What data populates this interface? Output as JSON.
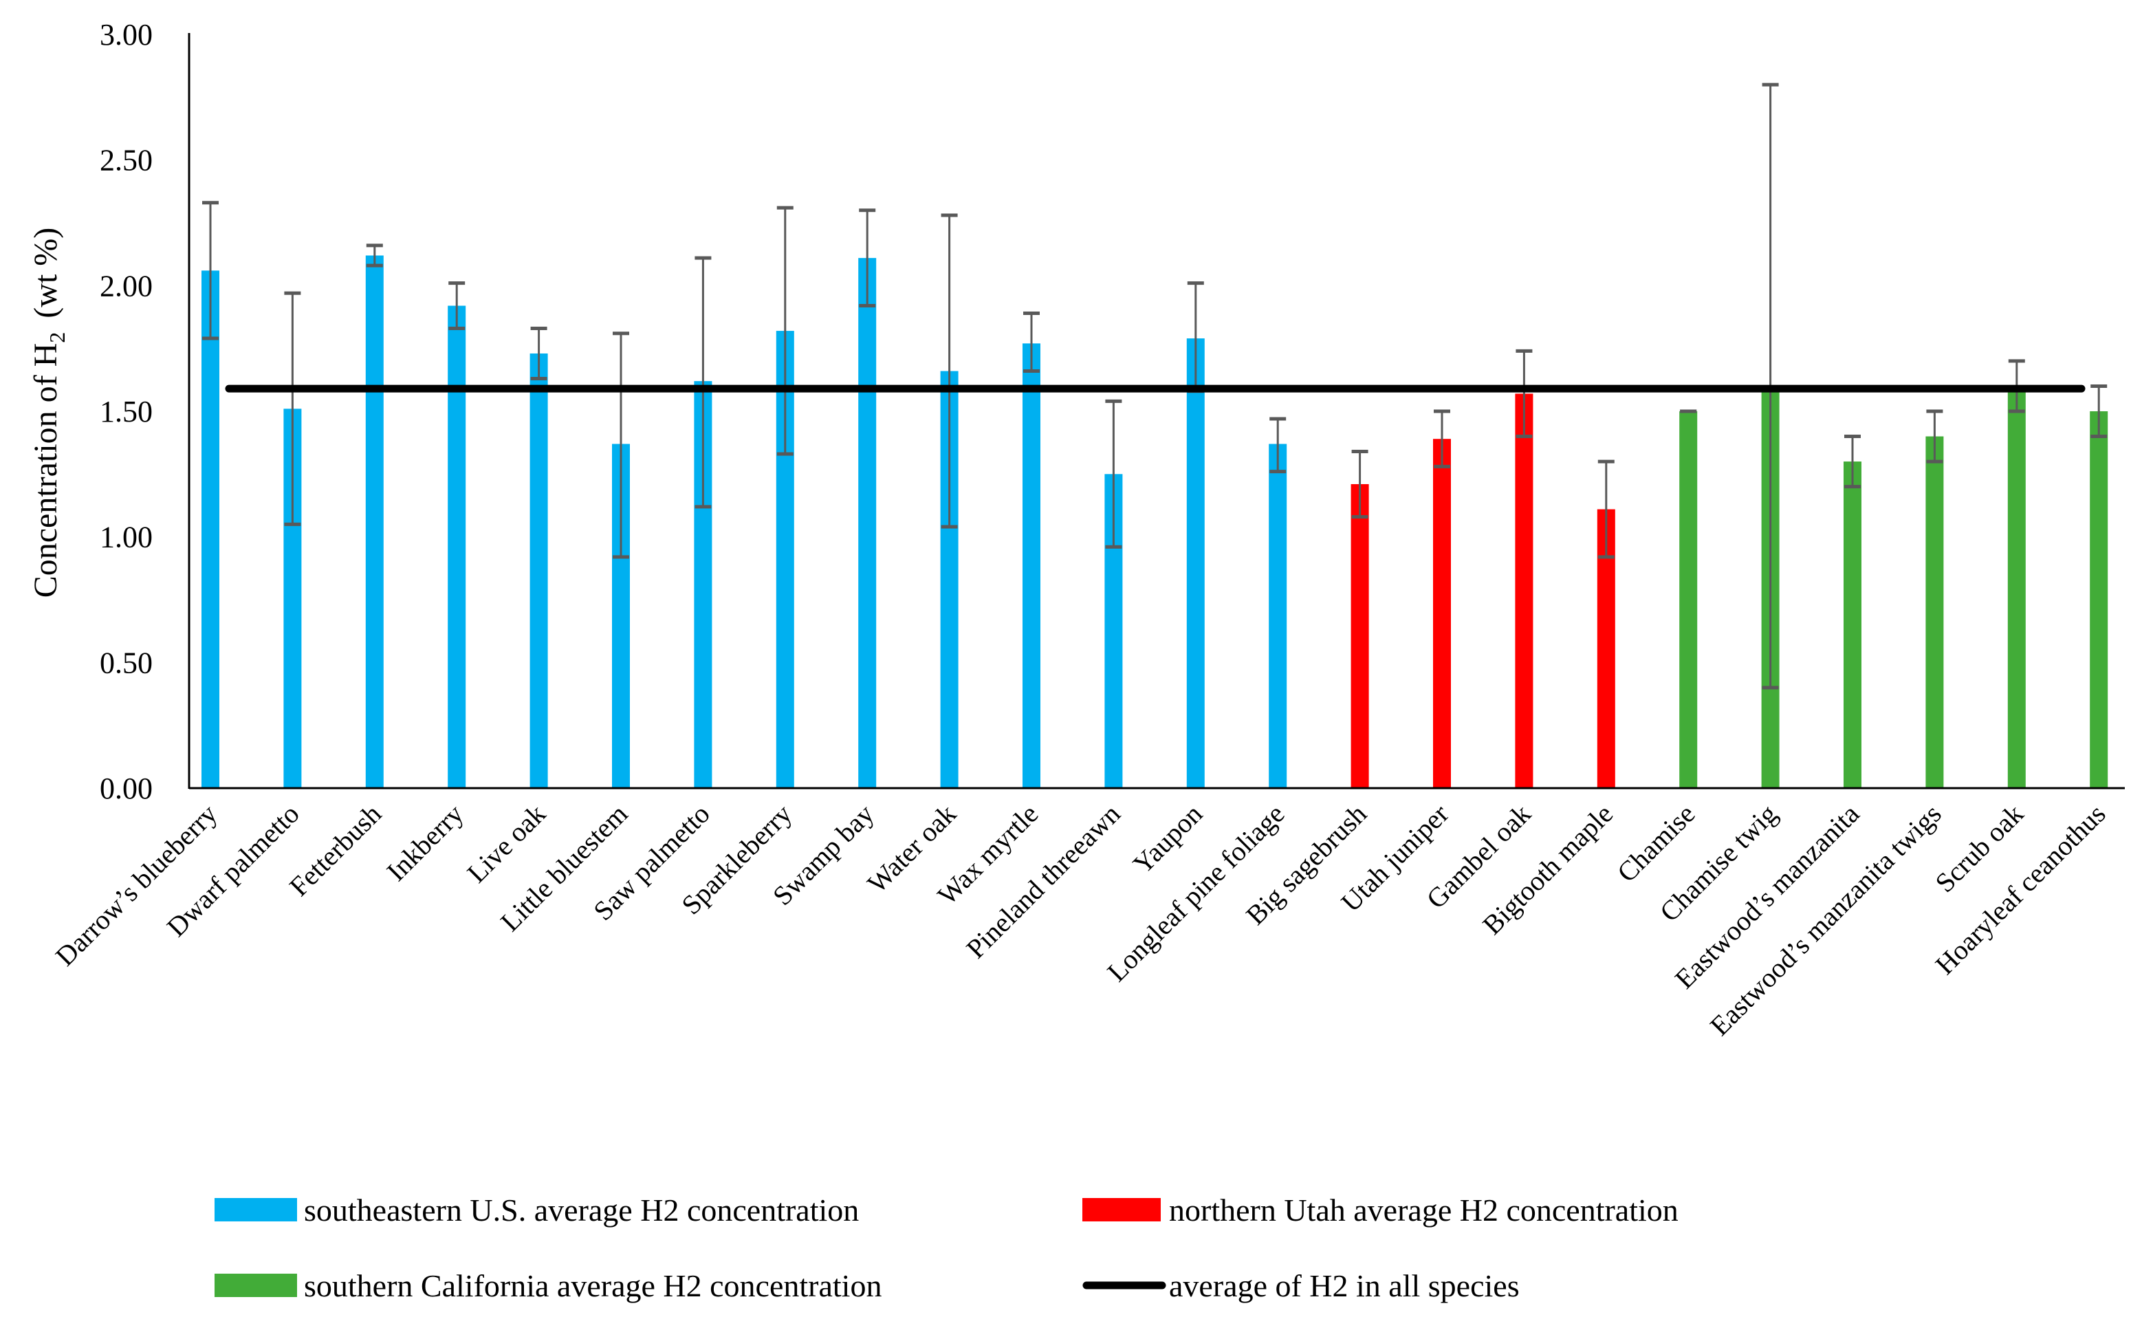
{
  "chart_data": {
    "type": "bar",
    "ylabel": "Concentration of H",
    "ylabel_sub": "2",
    "ylabel_unit": "(wt %)",
    "ylim": [
      0,
      3
    ],
    "yticks": [
      "0.00",
      "0.50",
      "1.00",
      "1.50",
      "2.00",
      "2.50",
      "3.00"
    ],
    "ytick_values": [
      0,
      0.5,
      1,
      1.5,
      2,
      2.5,
      3
    ],
    "grid": false,
    "categories": [
      "Darrow’s blueberry",
      "Dwarf palmetto",
      "Fetterbush",
      "Inkberry",
      "Live oak",
      "Little bluestem",
      "Saw palmetto",
      "Sparkleberry",
      "Swamp bay",
      "Water oak",
      "Wax myrtle",
      "Pineland threeawn",
      "Yaupon",
      "Longleaf pine foliage",
      "Big sagebrush",
      "Utah juniper",
      "Gambel oak",
      "Bigtooth maple",
      "Chamise",
      "Chamise twig",
      "Eastwood’s manzanita",
      "Eastwood’s manzanita twigs",
      "Scrub oak",
      "Hoaryleaf ceanothus"
    ],
    "values": [
      2.06,
      1.51,
      2.12,
      1.92,
      1.73,
      1.37,
      1.62,
      1.82,
      2.11,
      1.66,
      1.77,
      1.25,
      1.79,
      1.37,
      1.21,
      1.39,
      1.57,
      1.11,
      1.5,
      1.6,
      1.3,
      1.4,
      1.6,
      1.5
    ],
    "error_low": [
      1.79,
      1.05,
      2.08,
      1.83,
      1.63,
      0.92,
      1.12,
      1.33,
      1.92,
      1.04,
      1.66,
      0.96,
      1.58,
      1.26,
      1.08,
      1.28,
      1.4,
      0.92,
      1.5,
      0.4,
      1.2,
      1.3,
      1.5,
      1.4
    ],
    "error_high": [
      2.33,
      1.97,
      2.16,
      2.01,
      1.83,
      1.81,
      2.11,
      2.31,
      2.3,
      2.28,
      1.89,
      1.54,
      2.01,
      1.47,
      1.34,
      1.5,
      1.74,
      1.3,
      1.5,
      2.8,
      1.4,
      1.5,
      1.7,
      1.6
    ],
    "group": [
      0,
      0,
      0,
      0,
      0,
      0,
      0,
      0,
      0,
      0,
      0,
      0,
      0,
      0,
      1,
      1,
      1,
      1,
      2,
      2,
      2,
      2,
      2,
      2
    ],
    "average_all": 1.59,
    "series": [
      {
        "name": "southeastern U.S. average H2 concentration",
        "color": "#00B0F0"
      },
      {
        "name": "northern Utah average H2 concentration",
        "color": "#FF0000"
      },
      {
        "name": "southern California average H2 concentration",
        "color": "#42AC38"
      },
      {
        "name": "average of H2 in all species",
        "color": "#000000"
      }
    ],
    "legend_position": "bottom",
    "error_bar_color": "#595959"
  }
}
